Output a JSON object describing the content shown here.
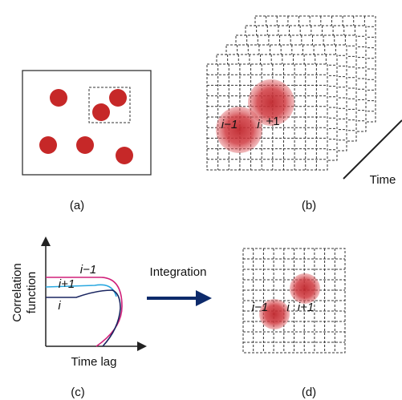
{
  "panels": [
    {
      "label": "(a)"
    },
    {
      "label": "(b)",
      "circle_labels": [
        "i−1",
        "i",
        "+1"
      ],
      "axis_label": "Time"
    },
    {
      "label": "(c)",
      "curve_labels": [
        "i−1",
        "i+1",
        "i"
      ],
      "y_axis_label": [
        "Correlation",
        "function"
      ],
      "x_axis_label": "Time lag"
    },
    {
      "label": "(d)",
      "circle_labels": [
        "i−1",
        "i",
        "i+1"
      ]
    }
  ],
  "arrow_label": "Integration"
}
